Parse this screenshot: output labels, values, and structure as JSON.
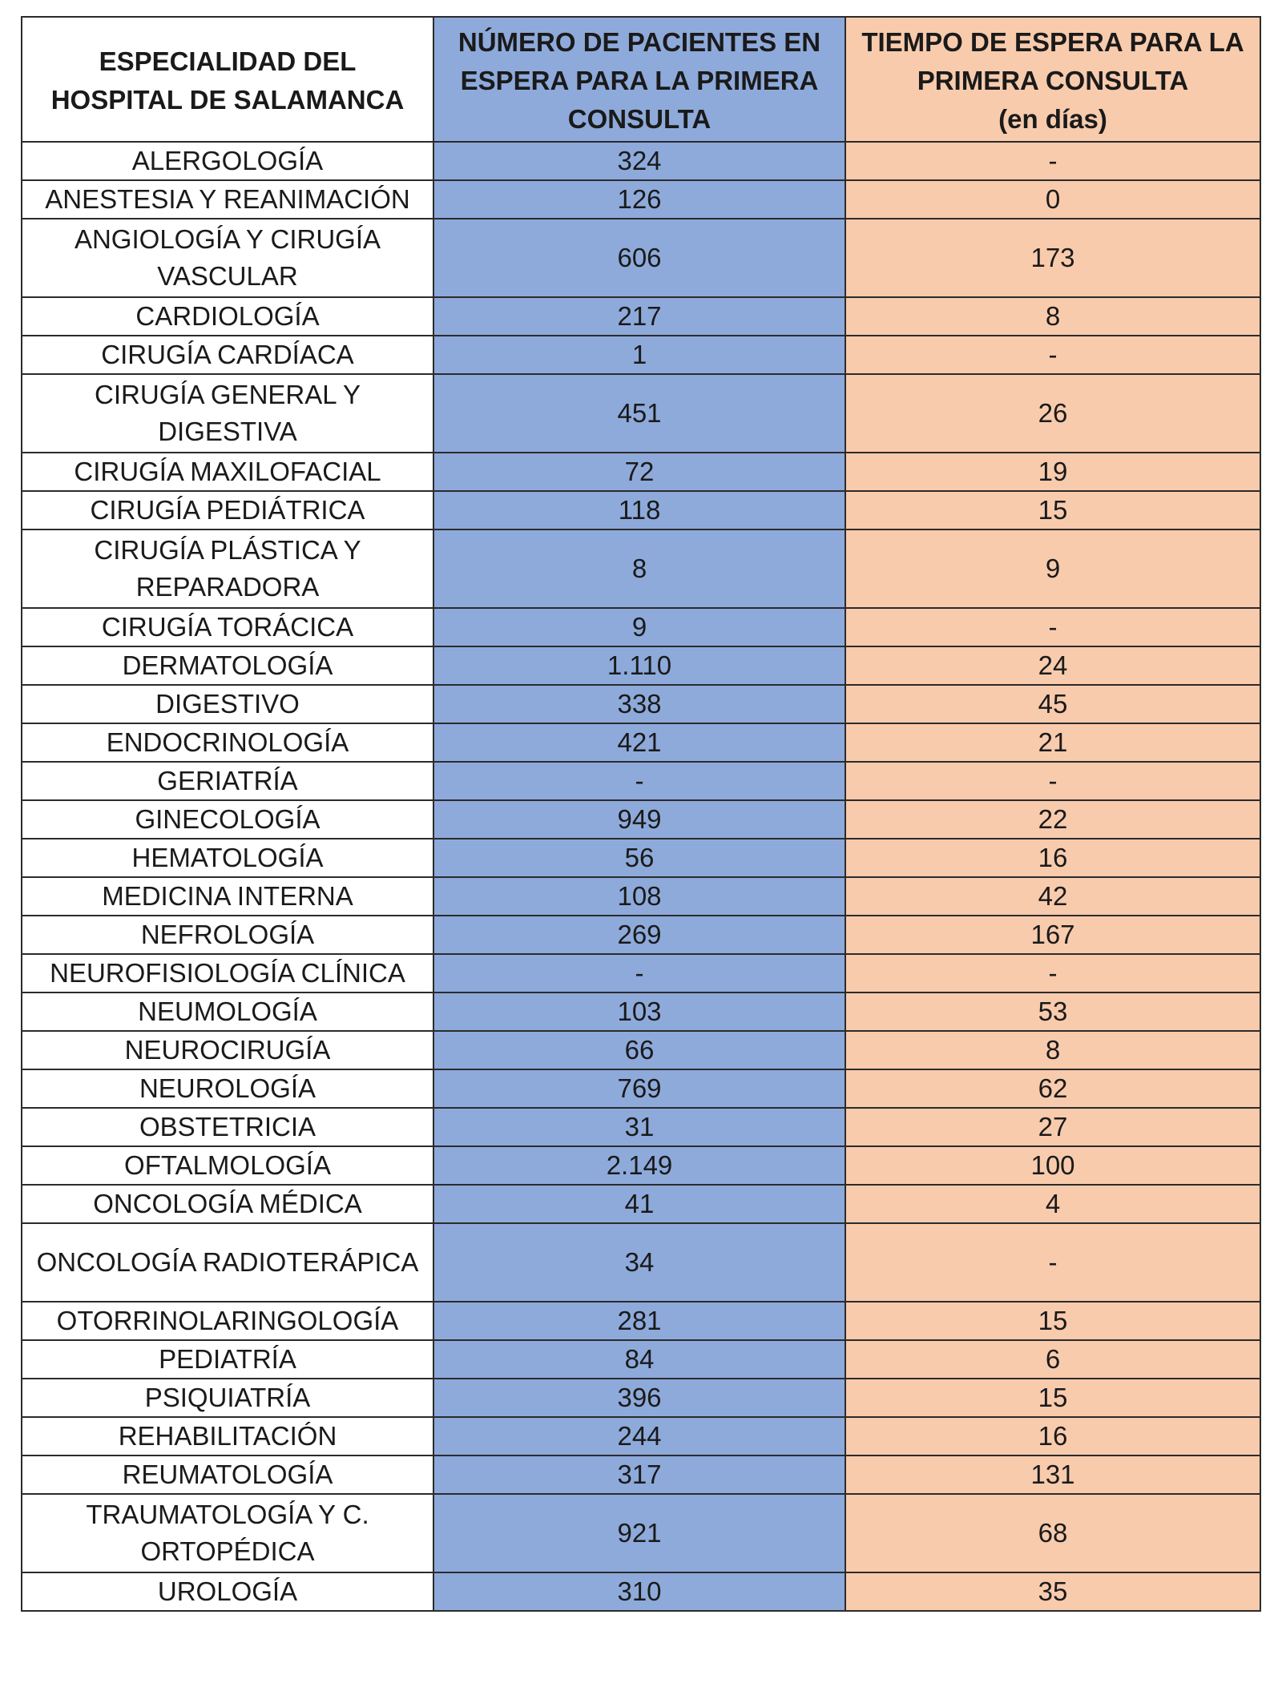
{
  "headers": {
    "specialty": "ESPECIALIDAD DEL\nHOSPITAL DE SALAMANCA",
    "patients": "NÚMERO DE PACIENTES EN\nESPERA PARA LA PRIMERA\nCONSULTA",
    "wait_time": "TIEMPO DE ESPERA PARA LA\nPRIMERA CONSULTA\n(en días)"
  },
  "colors": {
    "patients_column": "#8eaadb",
    "wait_time_column": "#f8cbad"
  },
  "rows": [
    {
      "specialty": "ALERGOLOGÍA",
      "patients": "324",
      "wait_days": "-"
    },
    {
      "specialty": "ANESTESIA Y REANIMACIÓN",
      "patients": "126",
      "wait_days": "0"
    },
    {
      "specialty": "ANGIOLOGÍA Y CIRUGÍA VASCULAR",
      "patients": "606",
      "wait_days": "173",
      "tall": true
    },
    {
      "specialty": "CARDIOLOGÍA",
      "patients": "217",
      "wait_days": "8"
    },
    {
      "specialty": "CIRUGÍA CARDÍACA",
      "patients": "1",
      "wait_days": "-"
    },
    {
      "specialty": "CIRUGÍA GENERAL Y DIGESTIVA",
      "patients": "451",
      "wait_days": "26",
      "tall": true
    },
    {
      "specialty": "CIRUGÍA MAXILOFACIAL",
      "patients": "72",
      "wait_days": "19"
    },
    {
      "specialty": "CIRUGÍA PEDIÁTRICA",
      "patients": "118",
      "wait_days": "15"
    },
    {
      "specialty": "CIRUGÍA PLÁSTICA Y REPARADORA",
      "patients": "8",
      "wait_days": "9",
      "tall": true
    },
    {
      "specialty": "CIRUGÍA TORÁCICA",
      "patients": "9",
      "wait_days": "-"
    },
    {
      "specialty": "DERMATOLOGÍA",
      "patients": "1.110",
      "wait_days": "24"
    },
    {
      "specialty": "DIGESTIVO",
      "patients": "338",
      "wait_days": "45"
    },
    {
      "specialty": "ENDOCRINOLOGÍA",
      "patients": "421",
      "wait_days": "21"
    },
    {
      "specialty": "GERIATRÍA",
      "patients": "-",
      "wait_days": "-"
    },
    {
      "specialty": "GINECOLOGÍA",
      "patients": "949",
      "wait_days": "22"
    },
    {
      "specialty": "HEMATOLOGÍA",
      "patients": "56",
      "wait_days": "16"
    },
    {
      "specialty": "MEDICINA INTERNA",
      "patients": "108",
      "wait_days": "42"
    },
    {
      "specialty": "NEFROLOGÍA",
      "patients": "269",
      "wait_days": "167"
    },
    {
      "specialty": "NEUROFISIOLOGÍA CLÍNICA",
      "patients": "-",
      "wait_days": "-"
    },
    {
      "specialty": "NEUMOLOGÍA",
      "patients": "103",
      "wait_days": "53"
    },
    {
      "specialty": "NEUROCIRUGÍA",
      "patients": "66",
      "wait_days": "8"
    },
    {
      "specialty": "NEUROLOGÍA",
      "patients": "769",
      "wait_days": "62"
    },
    {
      "specialty": "OBSTETRICIA",
      "patients": "31",
      "wait_days": "27"
    },
    {
      "specialty": "OFTALMOLOGÍA",
      "patients": "2.149",
      "wait_days": "100"
    },
    {
      "specialty": "ONCOLOGÍA MÉDICA",
      "patients": "41",
      "wait_days": "4"
    },
    {
      "specialty": "ONCOLOGÍA RADIOTERÁPICA",
      "patients": "34",
      "wait_days": "-",
      "tall": true
    },
    {
      "specialty": "OTORRINOLARINGOLOGÍA",
      "patients": "281",
      "wait_days": "15"
    },
    {
      "specialty": "PEDIATRÍA",
      "patients": "84",
      "wait_days": "6"
    },
    {
      "specialty": "PSIQUIATRÍA",
      "patients": "396",
      "wait_days": "15"
    },
    {
      "specialty": "REHABILITACIÓN",
      "patients": "244",
      "wait_days": "16"
    },
    {
      "specialty": "REUMATOLOGÍA",
      "patients": "317",
      "wait_days": "131"
    },
    {
      "specialty": "TRAUMATOLOGÍA Y C. ORTOPÉDICA",
      "patients": "921",
      "wait_days": "68",
      "tall": true
    },
    {
      "specialty": "UROLOGÍA",
      "patients": "310",
      "wait_days": "35"
    }
  ]
}
